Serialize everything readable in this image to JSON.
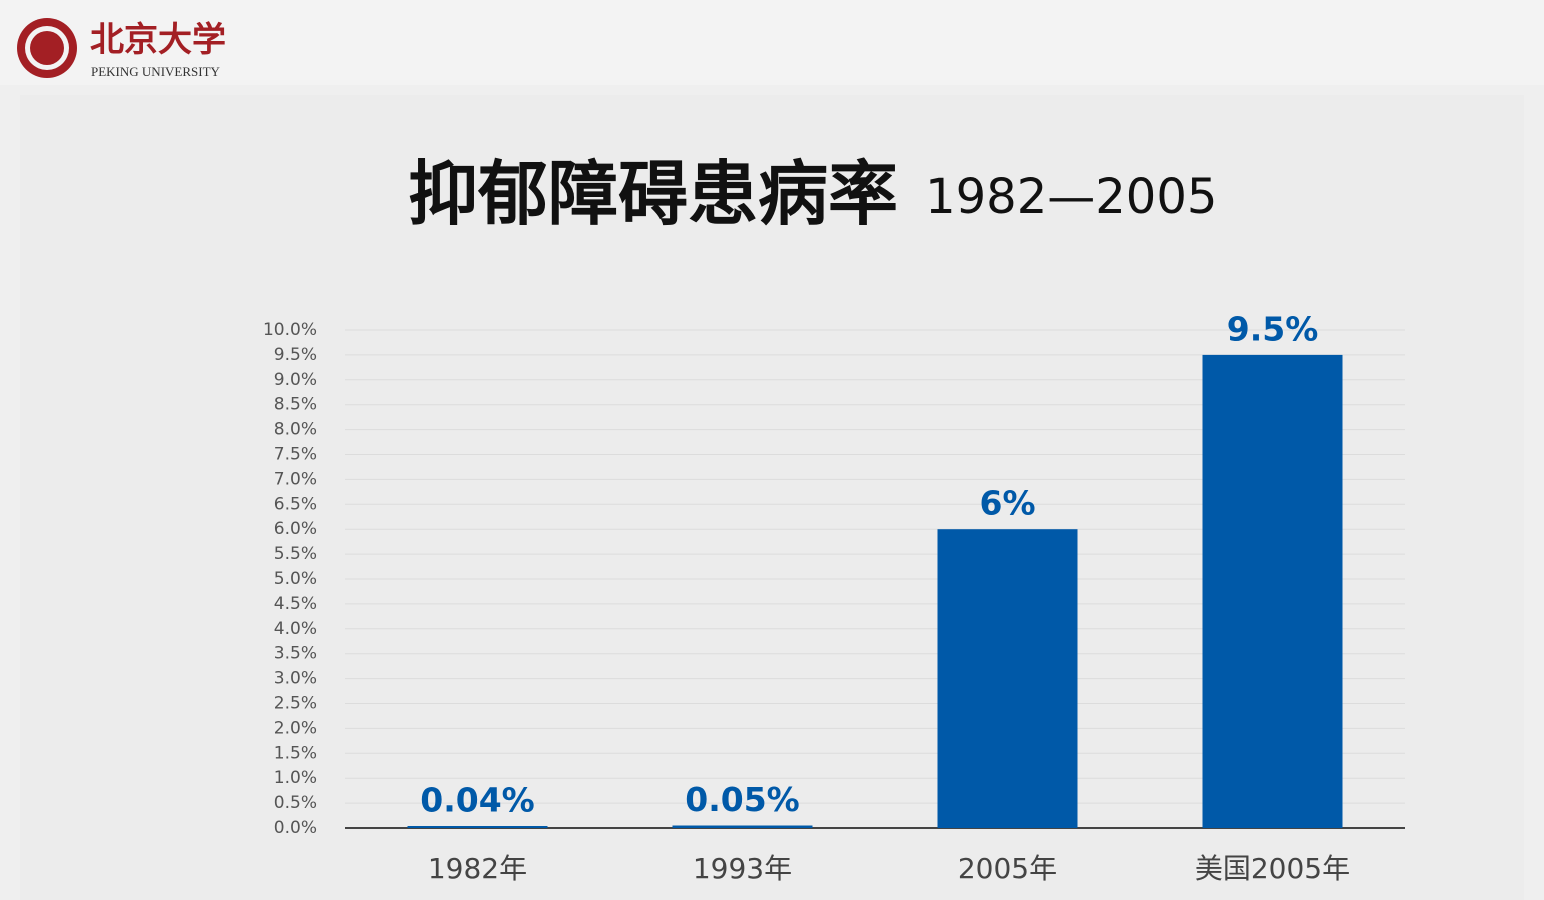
{
  "header": {
    "name": "北京大学",
    "english": "PEKING UNIVERSITY"
  },
  "chart_data": {
    "type": "bar",
    "title": "抑郁障碍患病率",
    "subtitle": "1982—2005",
    "categories": [
      "1982年",
      "1993年",
      "2005年",
      "美国2005年"
    ],
    "values": [
      0.04,
      0.05,
      6,
      9.5
    ],
    "value_labels": [
      "0.04%",
      "0.05%",
      "6%",
      "9.5%"
    ],
    "color": "#0059a8",
    "ylim": [
      0,
      10
    ],
    "yticks": [
      {
        "value": 0,
        "label": "0.0%"
      },
      {
        "value": 0.5,
        "label": "0.5%"
      },
      {
        "value": 1,
        "label": "1.0%"
      },
      {
        "value": 1.5,
        "label": "1.5%"
      },
      {
        "value": 2,
        "label": "2.0%"
      },
      {
        "value": 2.5,
        "label": "2.5%"
      },
      {
        "value": 3,
        "label": "3.0%"
      },
      {
        "value": 3.5,
        "label": "3.5%"
      },
      {
        "value": 4,
        "label": "4.0%"
      },
      {
        "value": 4.5,
        "label": "4.5%"
      },
      {
        "value": 5,
        "label": "5.0%"
      },
      {
        "value": 5.5,
        "label": "5.5%"
      },
      {
        "value": 6,
        "label": "6.0%"
      },
      {
        "value": 6.5,
        "label": "6.5%"
      },
      {
        "value": 7,
        "label": "7.0%"
      },
      {
        "value": 7.5,
        "label": "7.5%"
      },
      {
        "value": 8,
        "label": "8.0%"
      },
      {
        "value": 8.5,
        "label": "8.5%"
      },
      {
        "value": 9,
        "label": "9.0%"
      },
      {
        "value": 9.5,
        "label": "9.5%"
      },
      {
        "value": 10,
        "label": "10.0%"
      }
    ],
    "grid": true
  }
}
